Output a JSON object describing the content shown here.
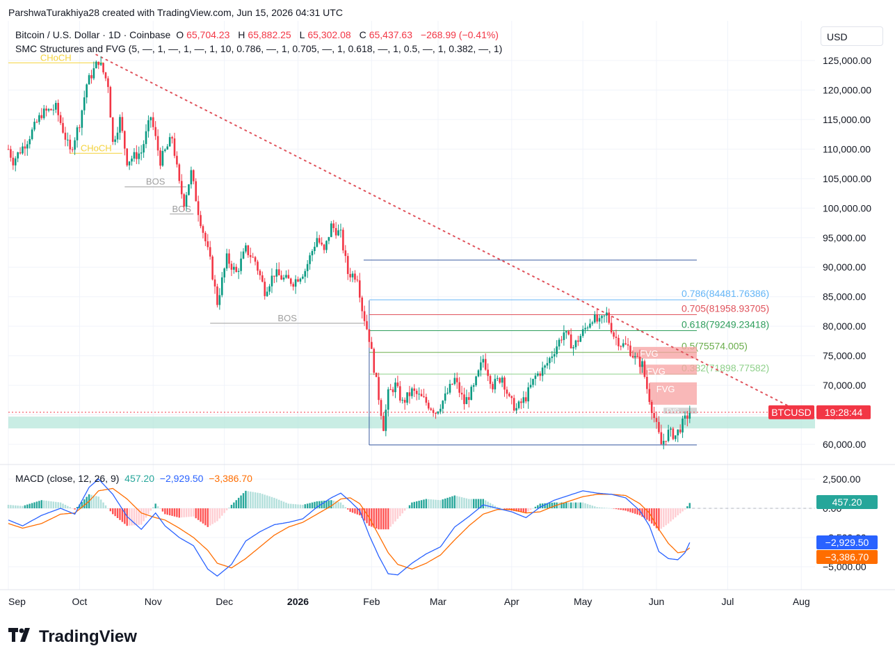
{
  "attribution": "ParshwaTurakhiya28 created with TradingView.com, Jun 15, 2026 04:31 UTC",
  "legend": {
    "symbol": "Bitcoin / U.S. Dollar · 1D · Coinbase",
    "open_label": "O",
    "open": "65,704.23",
    "high_label": "H",
    "high": "65,882.25",
    "low_label": "L",
    "low": "65,302.08",
    "close_label": "C",
    "close": "65,437.63",
    "change": "−268.99 (−0.41%)",
    "indicator": "SMC Structures and FVG (5, —, 1, —, 1, —, 1, 10, 0.786, —, 1, 0.705, —, 1, 0.618, —, 1, 0.5, —, 1, 0.382, —, 1)"
  },
  "currency": "USD",
  "macd_legend": {
    "name": "MACD (close, 12, 26, 9)",
    "histogram": "457.20",
    "macd": "−2,929.50",
    "signal": "−3,386.70"
  },
  "brand": "TradingView",
  "colors": {
    "up": "#089981",
    "down": "#f23645",
    "macd": "#2962ff",
    "signal": "#ff6d00",
    "fib_0786": "#64b5f6",
    "fib_0705": "#e0525b",
    "fib_0618": "#2e9e5b",
    "fib_05": "#6aad4c",
    "fib_0382": "#8ed08a",
    "range": "#3a5ba0",
    "fvg": "#f7a0a0",
    "bos": "#9e9e9e",
    "choch": "#f5d33b",
    "demand": "#b2e6d9"
  },
  "chart_data": [
    {
      "type": "candlestick",
      "title": "Bitcoin / U.S. Dollar · 1D · Coinbase",
      "y_axis": {
        "ticks": [
          60000,
          65000,
          70000,
          75000,
          80000,
          85000,
          90000,
          95000,
          100000,
          105000,
          110000,
          115000,
          120000,
          125000
        ],
        "tick_labels": [
          "60,000.00",
          "65,000.00",
          "70,000.00",
          "75,000.00",
          "80,000.00",
          "85,000.00",
          "90,000.00",
          "95,000.00",
          "100,000.00",
          "105,000.00",
          "110,000.00",
          "115,000.00",
          "120,000.00",
          "125,000.00"
        ],
        "ylim": [
          55000,
          131000
        ]
      },
      "x_axis": {
        "labels": [
          "Sep",
          "Oct",
          "Nov",
          "Dec",
          "2026",
          "Feb",
          "Mar",
          "Apr",
          "May",
          "Jun",
          "Jul",
          "Aug"
        ],
        "label_days": [
          0,
          30,
          61,
          91,
          122,
          153,
          181,
          212,
          242,
          273,
          303,
          334
        ],
        "start": "2025-09-01",
        "end_day": 345,
        "last_candle_day": 287
      },
      "price_path": [
        {
          "day": 0,
          "close": 110000
        },
        {
          "day": 2,
          "close": 108000
        },
        {
          "day": 8,
          "close": 111500
        },
        {
          "day": 14,
          "close": 116000
        },
        {
          "day": 20,
          "close": 117000
        },
        {
          "day": 26,
          "close": 109500
        },
        {
          "day": 30,
          "close": 114500
        },
        {
          "day": 33,
          "close": 121000
        },
        {
          "day": 38,
          "close": 125000
        },
        {
          "day": 42,
          "close": 121000
        },
        {
          "day": 44,
          "close": 111000
        },
        {
          "day": 47,
          "close": 115000
        },
        {
          "day": 50,
          "close": 108000
        },
        {
          "day": 56,
          "close": 109500
        },
        {
          "day": 60,
          "close": 115500
        },
        {
          "day": 64,
          "close": 108000
        },
        {
          "day": 69,
          "close": 112000
        },
        {
          "day": 72,
          "close": 104000
        },
        {
          "day": 74,
          "close": 101000
        },
        {
          "day": 77,
          "close": 106000
        },
        {
          "day": 80,
          "close": 99500
        },
        {
          "day": 85,
          "close": 91000
        },
        {
          "day": 88,
          "close": 84000
        },
        {
          "day": 92,
          "close": 91500
        },
        {
          "day": 96,
          "close": 89000
        },
        {
          "day": 100,
          "close": 93000
        },
        {
          "day": 104,
          "close": 91000
        },
        {
          "day": 108,
          "close": 86000
        },
        {
          "day": 112,
          "close": 89000
        },
        {
          "day": 116,
          "close": 88000
        },
        {
          "day": 120,
          "close": 87500
        },
        {
          "day": 125,
          "close": 89500
        },
        {
          "day": 130,
          "close": 95000
        },
        {
          "day": 133,
          "close": 92500
        },
        {
          "day": 136,
          "close": 97000
        },
        {
          "day": 140,
          "close": 95500
        },
        {
          "day": 143,
          "close": 89000
        },
        {
          "day": 147,
          "close": 88500
        },
        {
          "day": 149,
          "close": 83000
        },
        {
          "day": 152,
          "close": 78000
        },
        {
          "day": 155,
          "close": 70500
        },
        {
          "day": 158,
          "close": 63000
        },
        {
          "day": 160,
          "close": 68500
        },
        {
          "day": 163,
          "close": 70000
        },
        {
          "day": 166,
          "close": 67000
        },
        {
          "day": 170,
          "close": 69000
        },
        {
          "day": 175,
          "close": 67500
        },
        {
          "day": 180,
          "close": 65500
        },
        {
          "day": 184,
          "close": 68000
        },
        {
          "day": 188,
          "close": 71000
        },
        {
          "day": 192,
          "close": 67000
        },
        {
          "day": 196,
          "close": 69500
        },
        {
          "day": 200,
          "close": 74500
        },
        {
          "day": 204,
          "close": 70000
        },
        {
          "day": 208,
          "close": 71500
        },
        {
          "day": 211,
          "close": 67500
        },
        {
          "day": 214,
          "close": 66000
        },
        {
          "day": 218,
          "close": 68000
        },
        {
          "day": 222,
          "close": 71500
        },
        {
          "day": 226,
          "close": 73000
        },
        {
          "day": 230,
          "close": 76000
        },
        {
          "day": 234,
          "close": 79000
        },
        {
          "day": 238,
          "close": 76500
        },
        {
          "day": 242,
          "close": 79000
        },
        {
          "day": 246,
          "close": 81500
        },
        {
          "day": 249,
          "close": 80500
        },
        {
          "day": 252,
          "close": 82000
        },
        {
          "day": 255,
          "close": 78500
        },
        {
          "day": 258,
          "close": 77000
        },
        {
          "day": 261,
          "close": 76500
        },
        {
          "day": 264,
          "close": 74500
        },
        {
          "day": 267,
          "close": 73500
        },
        {
          "day": 269,
          "close": 69500
        },
        {
          "day": 272,
          "close": 64500
        },
        {
          "day": 275,
          "close": 60000
        },
        {
          "day": 278,
          "close": 62000
        },
        {
          "day": 281,
          "close": 61500
        },
        {
          "day": 284,
          "close": 63500
        },
        {
          "day": 287,
          "close": 65437.63
        }
      ],
      "fibonacci": [
        {
          "level": "0.786",
          "price": 84481.76386,
          "label": "0.786(84481.76386)"
        },
        {
          "level": "0.705",
          "price": 81958.93705,
          "label": "0.705(81958.93705)"
        },
        {
          "level": "0.618",
          "price": 79249.23418,
          "label": "0.618(79249.23418)"
        },
        {
          "level": "0.5",
          "price": 75574.005,
          "label": "0.5(75574.005)"
        },
        {
          "level": "0.382",
          "price": 71898.77582,
          "label": "0.382(71898.77582)"
        }
      ],
      "range": {
        "high": 91200,
        "low": 59900,
        "start_day": 152,
        "end_day": 290
      },
      "structures": [
        {
          "label": "CHoCH",
          "price": 124600,
          "start_day": 0,
          "end_day": 40,
          "kind": "choch"
        },
        {
          "label": "CHoCH",
          "price": 109300,
          "start_day": 26,
          "end_day": 48,
          "kind": "choch"
        },
        {
          "label": "BOS",
          "price": 103600,
          "start_day": 49,
          "end_day": 75,
          "kind": "bos"
        },
        {
          "label": "BOS",
          "price": 99000,
          "start_day": 68,
          "end_day": 78,
          "kind": "bos"
        },
        {
          "label": "BOS",
          "price": 80500,
          "start_day": 85,
          "end_day": 150,
          "kind": "bos"
        }
      ],
      "fvg_zones": [
        {
          "label": "FVG",
          "top": 76500,
          "bottom": 74500,
          "start_day": 263,
          "end_day": 290
        },
        {
          "label": "FVG",
          "top": 73500,
          "bottom": 71800,
          "start_day": 266,
          "end_day": 290
        },
        {
          "label": "FVG",
          "top": 70500,
          "bottom": 66700,
          "start_day": 270,
          "end_day": 290
        }
      ],
      "small_zone": {
        "label": "FVG",
        "top": 66200,
        "bottom": 65200,
        "start_day": 276,
        "end_day": 290
      },
      "demand_zone": {
        "top": 64700,
        "bottom": 62700
      },
      "trendline": {
        "start_day": 37,
        "start_price": 126000,
        "end_day": 333,
        "end_price": 65600
      },
      "last_price": 65437.63,
      "last_price_label": "BTCUSD",
      "countdown": "19:28:44"
    },
    {
      "type": "macd",
      "title": "MACD (close, 12, 26, 9)",
      "y_axis": {
        "ticks": [
          2500,
          0,
          -2500,
          -5000
        ],
        "tick_labels": [
          "2,500.00",
          "0.00",
          "−2,500.00",
          "−5,000.00"
        ],
        "ylim": [
          -6200,
          3500
        ]
      },
      "macd_path": [
        {
          "day": 0,
          "value": -1000
        },
        {
          "day": 6,
          "value": -1500
        },
        {
          "day": 14,
          "value": -600
        },
        {
          "day": 22,
          "value": 0
        },
        {
          "day": 28,
          "value": -500
        },
        {
          "day": 34,
          "value": 1800
        },
        {
          "day": 38,
          "value": 2500
        },
        {
          "day": 44,
          "value": 1200
        },
        {
          "day": 50,
          "value": -700
        },
        {
          "day": 56,
          "value": -1800
        },
        {
          "day": 62,
          "value": -400
        },
        {
          "day": 66,
          "value": -1500
        },
        {
          "day": 72,
          "value": -2500
        },
        {
          "day": 78,
          "value": -3200
        },
        {
          "day": 84,
          "value": -5200
        },
        {
          "day": 88,
          "value": -5800
        },
        {
          "day": 94,
          "value": -4800
        },
        {
          "day": 100,
          "value": -2800
        },
        {
          "day": 106,
          "value": -2000
        },
        {
          "day": 112,
          "value": -1400
        },
        {
          "day": 118,
          "value": -1200
        },
        {
          "day": 124,
          "value": -900
        },
        {
          "day": 130,
          "value": 100
        },
        {
          "day": 136,
          "value": 900
        },
        {
          "day": 140,
          "value": 1300
        },
        {
          "day": 144,
          "value": 600
        },
        {
          "day": 148,
          "value": -200
        },
        {
          "day": 152,
          "value": -2300
        },
        {
          "day": 156,
          "value": -4100
        },
        {
          "day": 160,
          "value": -5600
        },
        {
          "day": 164,
          "value": -5700
        },
        {
          "day": 170,
          "value": -4700
        },
        {
          "day": 176,
          "value": -3900
        },
        {
          "day": 182,
          "value": -3300
        },
        {
          "day": 188,
          "value": -1600
        },
        {
          "day": 194,
          "value": -700
        },
        {
          "day": 200,
          "value": 300
        },
        {
          "day": 206,
          "value": 0
        },
        {
          "day": 212,
          "value": -300
        },
        {
          "day": 218,
          "value": -800
        },
        {
          "day": 224,
          "value": 100
        },
        {
          "day": 230,
          "value": 700
        },
        {
          "day": 236,
          "value": 1100
        },
        {
          "day": 242,
          "value": 1500
        },
        {
          "day": 248,
          "value": 1300
        },
        {
          "day": 254,
          "value": 1200
        },
        {
          "day": 260,
          "value": 900
        },
        {
          "day": 266,
          "value": -200
        },
        {
          "day": 270,
          "value": -1500
        },
        {
          "day": 274,
          "value": -3700
        },
        {
          "day": 278,
          "value": -4300
        },
        {
          "day": 282,
          "value": -4400
        },
        {
          "day": 285,
          "value": -3800
        },
        {
          "day": 287,
          "value": -2929.5
        }
      ],
      "signal_path": [
        {
          "day": 0,
          "value": -1300
        },
        {
          "day": 6,
          "value": -1700
        },
        {
          "day": 14,
          "value": -1300
        },
        {
          "day": 22,
          "value": -500
        },
        {
          "day": 28,
          "value": -400
        },
        {
          "day": 34,
          "value": 600
        },
        {
          "day": 38,
          "value": 1500
        },
        {
          "day": 44,
          "value": 1700
        },
        {
          "day": 50,
          "value": 800
        },
        {
          "day": 56,
          "value": -400
        },
        {
          "day": 62,
          "value": -800
        },
        {
          "day": 66,
          "value": -1000
        },
        {
          "day": 72,
          "value": -1700
        },
        {
          "day": 78,
          "value": -2500
        },
        {
          "day": 84,
          "value": -3600
        },
        {
          "day": 88,
          "value": -4700
        },
        {
          "day": 94,
          "value": -5100
        },
        {
          "day": 100,
          "value": -4300
        },
        {
          "day": 106,
          "value": -3300
        },
        {
          "day": 112,
          "value": -2300
        },
        {
          "day": 118,
          "value": -1600
        },
        {
          "day": 124,
          "value": -1200
        },
        {
          "day": 130,
          "value": -500
        },
        {
          "day": 136,
          "value": 200
        },
        {
          "day": 140,
          "value": 800
        },
        {
          "day": 144,
          "value": 900
        },
        {
          "day": 148,
          "value": 400
        },
        {
          "day": 152,
          "value": -800
        },
        {
          "day": 156,
          "value": -2300
        },
        {
          "day": 160,
          "value": -3800
        },
        {
          "day": 164,
          "value": -4800
        },
        {
          "day": 170,
          "value": -5200
        },
        {
          "day": 176,
          "value": -4700
        },
        {
          "day": 182,
          "value": -4000
        },
        {
          "day": 188,
          "value": -2700
        },
        {
          "day": 194,
          "value": -1500
        },
        {
          "day": 200,
          "value": -500
        },
        {
          "day": 206,
          "value": -100
        },
        {
          "day": 212,
          "value": -100
        },
        {
          "day": 218,
          "value": -400
        },
        {
          "day": 224,
          "value": -300
        },
        {
          "day": 230,
          "value": 200
        },
        {
          "day": 236,
          "value": 600
        },
        {
          "day": 242,
          "value": 1000
        },
        {
          "day": 248,
          "value": 1200
        },
        {
          "day": 254,
          "value": 1200
        },
        {
          "day": 260,
          "value": 1100
        },
        {
          "day": 266,
          "value": 400
        },
        {
          "day": 270,
          "value": -400
        },
        {
          "day": 274,
          "value": -1800
        },
        {
          "day": 278,
          "value": -3000
        },
        {
          "day": 282,
          "value": -3800
        },
        {
          "day": 285,
          "value": -3700
        },
        {
          "day": 287,
          "value": -3386.7
        }
      ],
      "last_values": {
        "histogram": "457.20",
        "macd": "−2,929.50",
        "signal": "−3,386.70"
      }
    }
  ]
}
